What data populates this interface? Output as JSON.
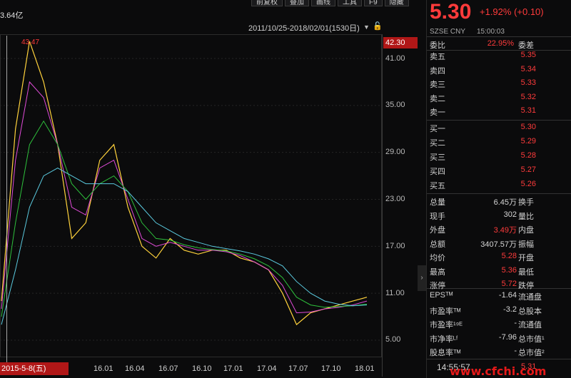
{
  "toolbar": {
    "items": [
      "前复权",
      "叠加",
      "画线",
      "工具",
      "F9",
      "隐藏"
    ]
  },
  "chart": {
    "volume_label": "3.64亿",
    "range_label": "2011/10/25-2018/02/01(1530日)",
    "max_label": "43.47",
    "current_price_tag": "42.30",
    "date_box": "2015-5-8(五)"
  },
  "chart_data": {
    "type": "line",
    "y_ticks": [
      "41.00",
      "35.00",
      "29.00",
      "23.00",
      "17.00",
      "11.00",
      "5.00"
    ],
    "x_ticks": [
      "16.01",
      "16.04",
      "16.07",
      "16.10",
      "17.01",
      "17.04",
      "17.07",
      "17.10",
      "18.01"
    ],
    "ylim": [
      5.0,
      43.47
    ],
    "series": [
      {
        "values": [
          10,
          32,
          43.2,
          38,
          30,
          18,
          20,
          28,
          30,
          22,
          17,
          15.5,
          18,
          16.5,
          16,
          16.5,
          16.5,
          15.5,
          15,
          14,
          11,
          7,
          8.5,
          9,
          9.5,
          10,
          10.5
        ]
      },
      {
        "values": [
          9,
          28,
          38,
          36,
          30,
          22,
          21,
          27,
          28,
          23,
          18,
          17,
          17.5,
          17,
          16.5,
          16.5,
          16.3,
          15.8,
          15,
          14,
          12,
          8.5,
          8.6,
          9,
          9.2,
          9.5,
          10
        ]
      },
      {
        "values": [
          8,
          20,
          30,
          33,
          30,
          25,
          23,
          25,
          26,
          24,
          20,
          18,
          17.8,
          17.2,
          16.8,
          16.6,
          16.4,
          16,
          15.4,
          14.5,
          13,
          10.5,
          9.5,
          9.2,
          9.3,
          9.4,
          9.6
        ]
      },
      {
        "values": [
          7,
          14,
          22,
          26,
          27,
          26,
          25,
          25,
          25,
          24,
          22,
          20,
          19,
          18,
          17.5,
          17,
          16.7,
          16.4,
          16,
          15.4,
          14.5,
          12.5,
          11,
          10,
          9.6,
          9.4,
          9.5
        ]
      }
    ],
    "colors": [
      "#ffd23c",
      "#e04bd8",
      "#2ec13c",
      "#5bcbe0"
    ]
  },
  "quote": {
    "price": "5.30",
    "change": "+1.92% (+0.10)",
    "exchange": "SZSE  CNY",
    "time": "15:00:03",
    "wei_bi_label": "委比",
    "wei_bi_value": "22.95%",
    "wei_cha_label": "委差",
    "asks": [
      {
        "label": "卖五",
        "price": "5.35"
      },
      {
        "label": "卖四",
        "price": "5.34"
      },
      {
        "label": "卖三",
        "price": "5.33"
      },
      {
        "label": "卖二",
        "price": "5.32"
      },
      {
        "label": "卖一",
        "price": "5.31"
      }
    ],
    "bids": [
      {
        "label": "买一",
        "price": "5.30"
      },
      {
        "label": "买二",
        "price": "5.29"
      },
      {
        "label": "买三",
        "price": "5.28"
      },
      {
        "label": "买四",
        "price": "5.27"
      },
      {
        "label": "买五",
        "price": "5.26"
      }
    ],
    "stats": [
      {
        "label": "总量",
        "value": "6.45万",
        "red": false,
        "label2": "换手"
      },
      {
        "label": "现手",
        "value": "302",
        "red": false,
        "label2": "量比"
      },
      {
        "label": "外盘",
        "value": "3.49万",
        "red": true,
        "label2": "内盘"
      },
      {
        "label": "总额",
        "value": "3407.57万",
        "red": false,
        "label2": "振幅"
      },
      {
        "label": "均价",
        "value": "5.28",
        "red": true,
        "label2": "开盘"
      },
      {
        "label": "最高",
        "value": "5.36",
        "red": true,
        "label2": "最低"
      },
      {
        "label": "涨停",
        "value": "5.72",
        "red": true,
        "label2": "跌停"
      }
    ],
    "fundamentals": [
      {
        "label": "EPSᵀᴹ",
        "value": "-1.64",
        "label2": "流通盘"
      },
      {
        "label": "市盈率ᵀᴹ",
        "value": "-3.2",
        "label2": "总股本"
      },
      {
        "label": "市盈率¹⁹ᴱ",
        "value": "-",
        "label2": "流通值"
      },
      {
        "label": "市净率ᴸᶠ",
        "value": "-7.96",
        "label2": "总市值¹"
      },
      {
        "label": "股息率ᵀᴹ",
        "value": "-",
        "label2": "总市值²"
      }
    ],
    "last_time": "14:55:57",
    "last_price": "5.31"
  },
  "watermark": "www.cfchi.com"
}
